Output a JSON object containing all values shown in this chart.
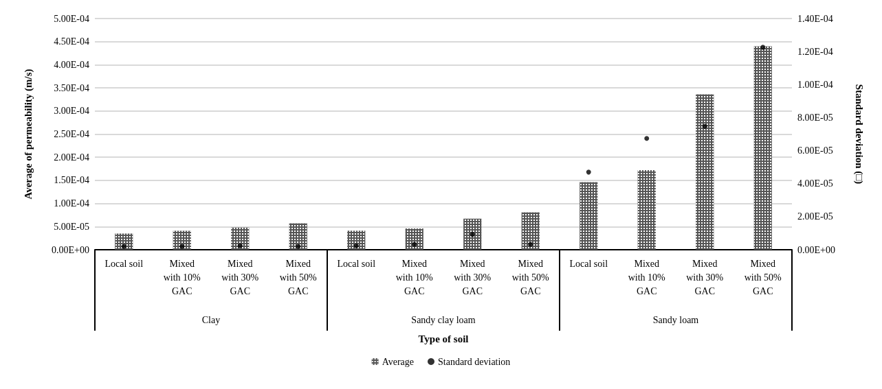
{
  "chart_data": {
    "type": "bar",
    "categories": [
      "Local soil",
      "Mixed\nwith 10%\nGAC",
      "Mixed\nwith 30%\nGAC",
      "Mixed\nwith 50%\nGAC",
      "Local soil",
      "Mixed\nwith 10%\nGAC",
      "Mixed\nwith 30%\nGAC",
      "Mixed\nwith 50%\nGAC",
      "Local soil",
      "Mixed\nwith 10%\nGAC",
      "Mixed\nwith 30%\nGAC",
      "Mixed\nwith 50%\nGAC"
    ],
    "annotations": [
      "Clay",
      "Sandy clay loam",
      "Sandy loam"
    ],
    "xlabel": "Type of soil",
    "ylabel": "Average of permeability (m/s)",
    "y2label": "Standard deviation (□)",
    "series": [
      {
        "name": "Average",
        "color": "#555555",
        "values": [
          3.5e-05,
          4.1e-05,
          4.8e-05,
          5.7e-05,
          4.1e-05,
          4.6e-05,
          6.7e-05,
          8.1e-05,
          0.000146,
          0.000172,
          0.000336,
          0.00044
        ]
      },
      {
        "name": "Standard deviation",
        "type": "scatter",
        "axis": "y2",
        "color": "#000000",
        "marker": "circle",
        "values": [
          2e-06,
          2e-06,
          2.4e-06,
          2e-06,
          2.4e-06,
          3.2e-06,
          9.3e-06,
          3.2e-06,
          4.7e-05,
          6.74e-05,
          7.47e-05,
          0.0001226
        ]
      }
    ],
    "ylim": [
      0,
      0.0005
    ],
    "yticks": [
      {
        "value": 0,
        "label": "0.00E+00"
      },
      {
        "value": 5e-05,
        "label": "5.00E-05"
      },
      {
        "value": 0.0001,
        "label": "1.00E-04"
      },
      {
        "value": 0.00015,
        "label": "1.50E-04"
      },
      {
        "value": 0.0002,
        "label": "2.00E-04"
      },
      {
        "value": 0.00025,
        "label": "2.50E-04"
      },
      {
        "value": 0.0003,
        "label": "3.00E-04"
      },
      {
        "value": 0.00035,
        "label": "3.50E-04"
      },
      {
        "value": 0.0004,
        "label": "4.00E-04"
      },
      {
        "value": 0.00045,
        "label": "4.50E-04"
      },
      {
        "value": 0.0005,
        "label": "5.00E-04"
      }
    ],
    "y2lim": [
      0,
      0.00014
    ],
    "y2ticks": [
      {
        "value": 0,
        "label": "0.00E+00"
      },
      {
        "value": 2e-05,
        "label": "2.00E-05"
      },
      {
        "value": 4e-05,
        "label": "4.00E-05"
      },
      {
        "value": 6e-05,
        "label": "6.00E-05"
      },
      {
        "value": 8e-05,
        "label": "8.00E-05"
      },
      {
        "value": 0.0001,
        "label": "1.00E-04"
      },
      {
        "value": 0.00012,
        "label": "1.20E-04"
      },
      {
        "value": 0.00014,
        "label": "1.40E-04"
      }
    ],
    "grid": "y",
    "legend": "bottom"
  }
}
